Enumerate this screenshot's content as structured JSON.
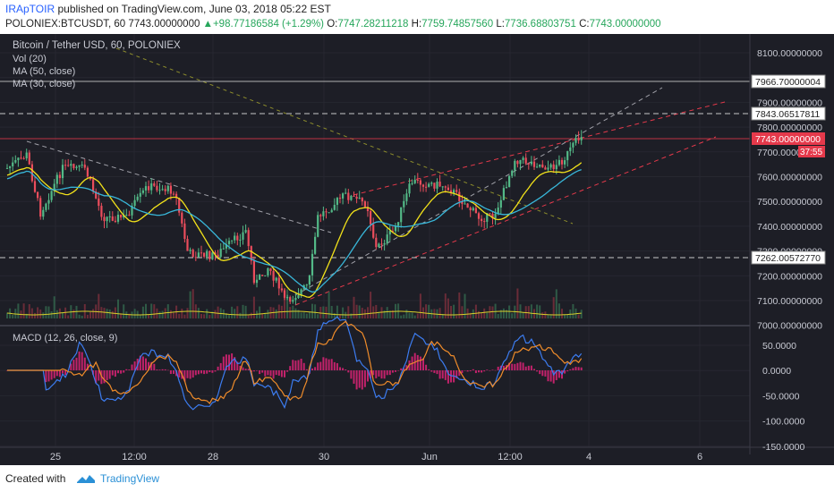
{
  "header": {
    "author": "IRApTOIR",
    "published": "published on TradingView.com, June 03, 2018 05:22 EST",
    "symbol": "POLONIEX:BTCUSDT, 60",
    "last": "7743.00000000",
    "change_arrow": "▲",
    "change": "+98.77186584 (+1.29%)",
    "o_label": "O:",
    "o_value": "7747.28211218",
    "h_label": "H:",
    "h_value": "7759.74857560",
    "l_label": "L:",
    "l_value": "7736.68803751",
    "c_label": "C:",
    "c_value": "7743.00000000"
  },
  "legend": {
    "title": "Bitcoin / Tether USD, 60, POLONIEX",
    "vol": "Vol (20)",
    "ma50": "MA (50, close)",
    "ma30": "MA (30, close)",
    "macd": "MACD (12, 26, close, 9)"
  },
  "price_axis": [
    "8100.00000000",
    "8000.00000000",
    "7900.00000000",
    "7800.00000000",
    "7700.00000000",
    "7600.00000000",
    "7500.00000000",
    "7400.00000000",
    "7300.00000000",
    "7200.00000000",
    "7100.00000000",
    "7000.00000000"
  ],
  "price_badges": {
    "level1": "7966.70000004",
    "level2": "7843.06517811",
    "current": "7743.00000000",
    "countdown": "37:55",
    "level3": "7262.00572770"
  },
  "macd_axis": [
    "50.0000",
    "0.0000",
    "-50.0000",
    "-100.0000",
    "-150.0000"
  ],
  "time_axis": [
    "25",
    "12:00",
    "28",
    "30",
    "Jun",
    "12:00",
    "4",
    "6"
  ],
  "footer": {
    "created_with": "Created with",
    "brand": "TradingView"
  },
  "colors": {
    "bg": "#1d1e26",
    "up": "#53b987",
    "down": "#eb4d5c",
    "ma_yellow": "#f2e21a",
    "ma_teal": "#38b6d8",
    "macd_blue": "#3c7cf0",
    "macd_orange": "#f08c2a",
    "hist": "#c2226b"
  }
}
